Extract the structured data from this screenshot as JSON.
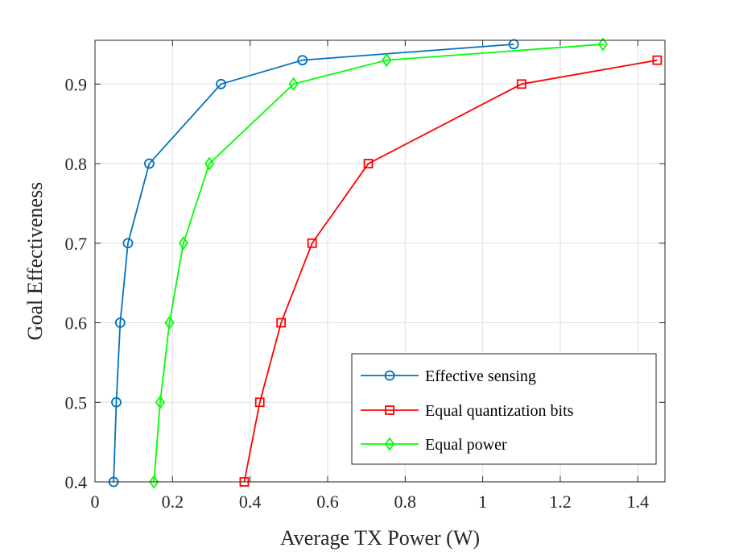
{
  "chart_data": {
    "type": "line",
    "title": "",
    "xlabel": "Average TX Power (W)",
    "ylabel": "Goal Effectiveness",
    "xlim": [
      0,
      1.47
    ],
    "ylim": [
      0.4,
      0.955
    ],
    "xticks": [
      0,
      0.2,
      0.4,
      0.6,
      0.8,
      1,
      1.2,
      1.4
    ],
    "xtick_labels": [
      "0",
      "0.2",
      "0.4",
      "0.6",
      "0.8",
      "1",
      "1.2",
      "1.4"
    ],
    "yticks": [
      0.4,
      0.5,
      0.6,
      0.7,
      0.8,
      0.9
    ],
    "ytick_labels": [
      "0.4",
      "0.5",
      "0.6",
      "0.7",
      "0.8",
      "0.9"
    ],
    "grid": true,
    "legend_position": "bottom-right",
    "series": [
      {
        "name": "Effective sensing",
        "color": "#0072BD",
        "marker": "circle",
        "x": [
          0.048,
          0.055,
          0.065,
          0.085,
          0.14,
          0.325,
          0.535,
          1.08
        ],
        "y": [
          0.4,
          0.5,
          0.6,
          0.7,
          0.8,
          0.9,
          0.93,
          0.95
        ]
      },
      {
        "name": "Equal quantization bits",
        "color": "#FF0000",
        "marker": "square",
        "x": [
          0.385,
          0.425,
          0.48,
          0.56,
          0.705,
          1.1,
          1.45
        ],
        "y": [
          0.4,
          0.5,
          0.6,
          0.7,
          0.8,
          0.9,
          0.93
        ]
      },
      {
        "name": "Equal power",
        "color": "#00FF00",
        "marker": "diamond",
        "x": [
          0.152,
          0.168,
          0.192,
          0.228,
          0.295,
          0.512,
          0.752,
          1.31
        ],
        "y": [
          0.4,
          0.5,
          0.6,
          0.7,
          0.8,
          0.9,
          0.93,
          0.95
        ]
      }
    ]
  }
}
